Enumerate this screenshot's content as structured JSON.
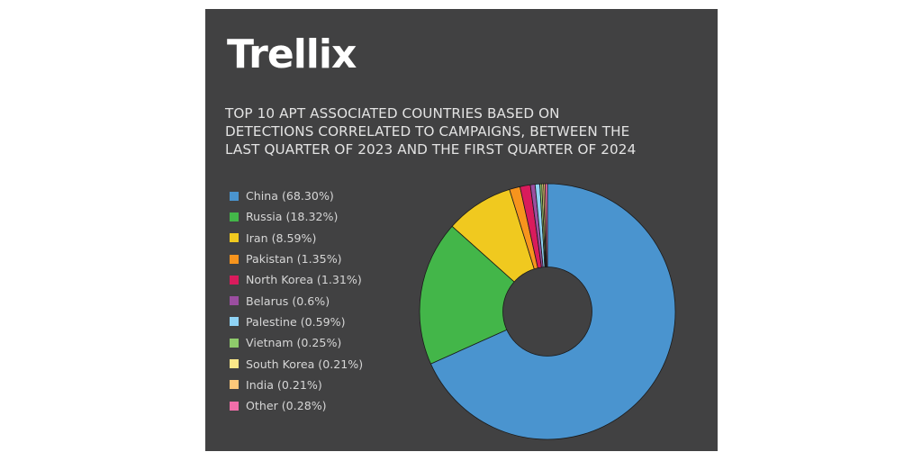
{
  "brand": {
    "logo_text": "Trellix"
  },
  "colors": {
    "panel_bg": "#414142",
    "title_text": "#e3e3e3",
    "legend_text": "#d6d6d6"
  },
  "title_lines": [
    "TOP 10 APT ASSOCIATED COUNTRIES BASED ON",
    "DETECTIONS CORRELATED TO CAMPAIGNS, BETWEEN THE",
    "LAST QUARTER OF 2023 AND THE FIRST QUARTER OF 2024"
  ],
  "legend": [
    {
      "label": "China (68.30%)",
      "color": "#4a94cf"
    },
    {
      "label": "Russia (18.32%)",
      "color": "#43b649"
    },
    {
      "label": "Iran (8.59%)",
      "color": "#f0c91f"
    },
    {
      "label": "Pakistan (1.35%)",
      "color": "#f7941d"
    },
    {
      "label": "North Korea (1.31%)",
      "color": "#d91b5c"
    },
    {
      "label": "Belarus (0.6%)",
      "color": "#9b4ea0"
    },
    {
      "label": "Palestine (0.59%)",
      "color": "#8fd3f5"
    },
    {
      "label": "Vietnam (0.25%)",
      "color": "#8fcb6b"
    },
    {
      "label": "South Korea (0.21%)",
      "color": "#fbe889"
    },
    {
      "label": "India (0.21%)",
      "color": "#fdc87a"
    },
    {
      "label": "Other (0.28%)",
      "color": "#f06ea9"
    }
  ],
  "chart_data": {
    "type": "pie",
    "subtype": "donut",
    "title": "TOP 10 APT ASSOCIATED COUNTRIES BASED ON DETECTIONS CORRELATED TO CAMPAIGNS, BETWEEN THE LAST QUARTER OF 2023 AND THE FIRST QUARTER OF 2024",
    "categories": [
      "China",
      "Russia",
      "Iran",
      "Pakistan",
      "North Korea",
      "Belarus",
      "Palestine",
      "Vietnam",
      "South Korea",
      "India",
      "Other"
    ],
    "values": [
      68.3,
      18.32,
      8.59,
      1.35,
      1.31,
      0.6,
      0.59,
      0.25,
      0.21,
      0.21,
      0.28
    ],
    "unit": "%",
    "colors": [
      "#4a94cf",
      "#43b649",
      "#f0c91f",
      "#f7941d",
      "#d91b5c",
      "#9b4ea0",
      "#8fd3f5",
      "#8fcb6b",
      "#fbe889",
      "#fdc87a",
      "#f06ea9"
    ],
    "legend_position": "left",
    "start_angle": "top",
    "direction": "clockwise"
  }
}
